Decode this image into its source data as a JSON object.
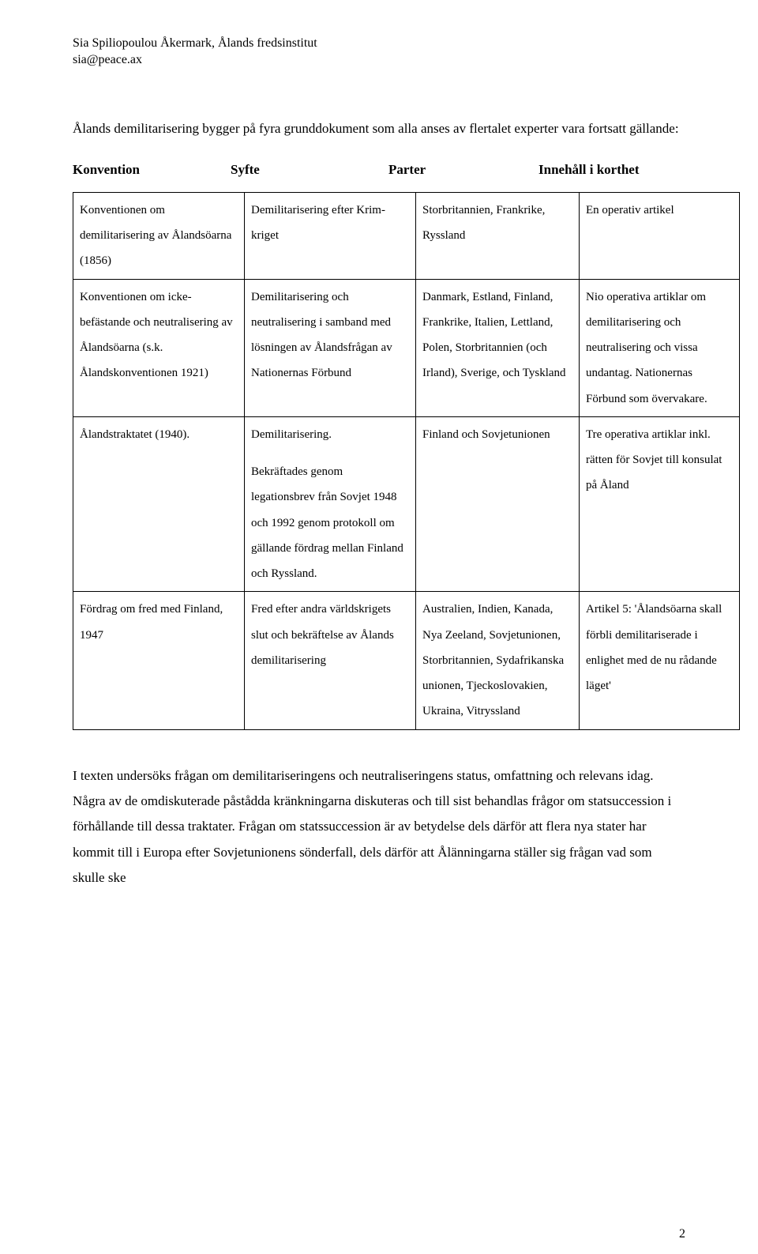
{
  "colors": {
    "background": "#ffffff",
    "text": "#000000",
    "table_border": "#000000"
  },
  "typography": {
    "body_family": "Times New Roman",
    "body_size_pt": 12,
    "header_size_pt": 12,
    "table_size_pt": 11
  },
  "header": {
    "line1": "Sia Spiliopoulou Åkermark, Ålands fredsinstitut",
    "line2": "sia@peace.ax"
  },
  "intro": "Ålands demilitarisering bygger på fyra grunddokument som alla anses av flertalet experter vara fortsatt gällande:",
  "table_head": {
    "c1": "Konvention",
    "c2": "Syfte",
    "c3": "Parter",
    "c4": "Innehåll i korthet"
  },
  "rows": [
    {
      "c1": "Konventionen om demilitarisering av Ålandsöarna (1856)",
      "c2": "Demilitarisering efter Krim-kriget",
      "c3": "Storbritannien, Frankrike, Ryssland",
      "c4": "En operativ artikel"
    },
    {
      "c1": "Konventionen om icke-befästande och neutralisering av Ålandsöarna (s.k. Ålandskonventionen 1921)",
      "c2": "Demilitarisering och neutralisering i samband med lösningen av Ålandsfrågan av Nationernas Förbund",
      "c3": "Danmark, Estland, Finland, Frankrike, Italien, Lettland, Polen, Storbritannien (och Irland), Sverige, och Tyskland",
      "c4": "Nio operativa artiklar om demilitarisering och neutralisering och vissa undantag. Nationernas Förbund som övervakare."
    },
    {
      "c1": "Ålandstraktatet (1940).",
      "c2": "Demilitarisering.\n\nBekräftades genom legationsbrev från Sovjet 1948 och 1992 genom protokoll om gällande fördrag mellan Finland och Ryssland.",
      "c3": "Finland och Sovjetunionen",
      "c4": "Tre operativa artiklar inkl. rätten för Sovjet till konsulat på Åland"
    },
    {
      "c1": "Fördrag om fred med Finland, 1947",
      "c2": "Fred efter andra världskrigets slut och bekräftelse av Ålands demilitarisering",
      "c3": "Australien, Indien, Kanada, Nya Zeeland, Sovjetunionen, Storbritannien, Sydafrikanska unionen, Tjeckoslovakien, Ukraina, Vitryssland",
      "c4": "Artikel 5: 'Ålandsöarna skall förbli demilitariserade i enlighet med de nu rådande läget'"
    }
  ],
  "closing": "I texten undersöks frågan om demilitariseringens och neutraliseringens status, omfattning och relevans idag. Några av de omdiskuterade påstådda kränkningarna diskuteras och till sist behandlas frågor om statsuccession i förhållande till dessa traktater. Frågan om statssuccession är av betydelse dels därför att flera nya stater har kommit till i Europa efter Sovjetunionens sönderfall, dels därför att Ålänningarna ställer sig frågan vad som skulle ske",
  "page_number": "2"
}
